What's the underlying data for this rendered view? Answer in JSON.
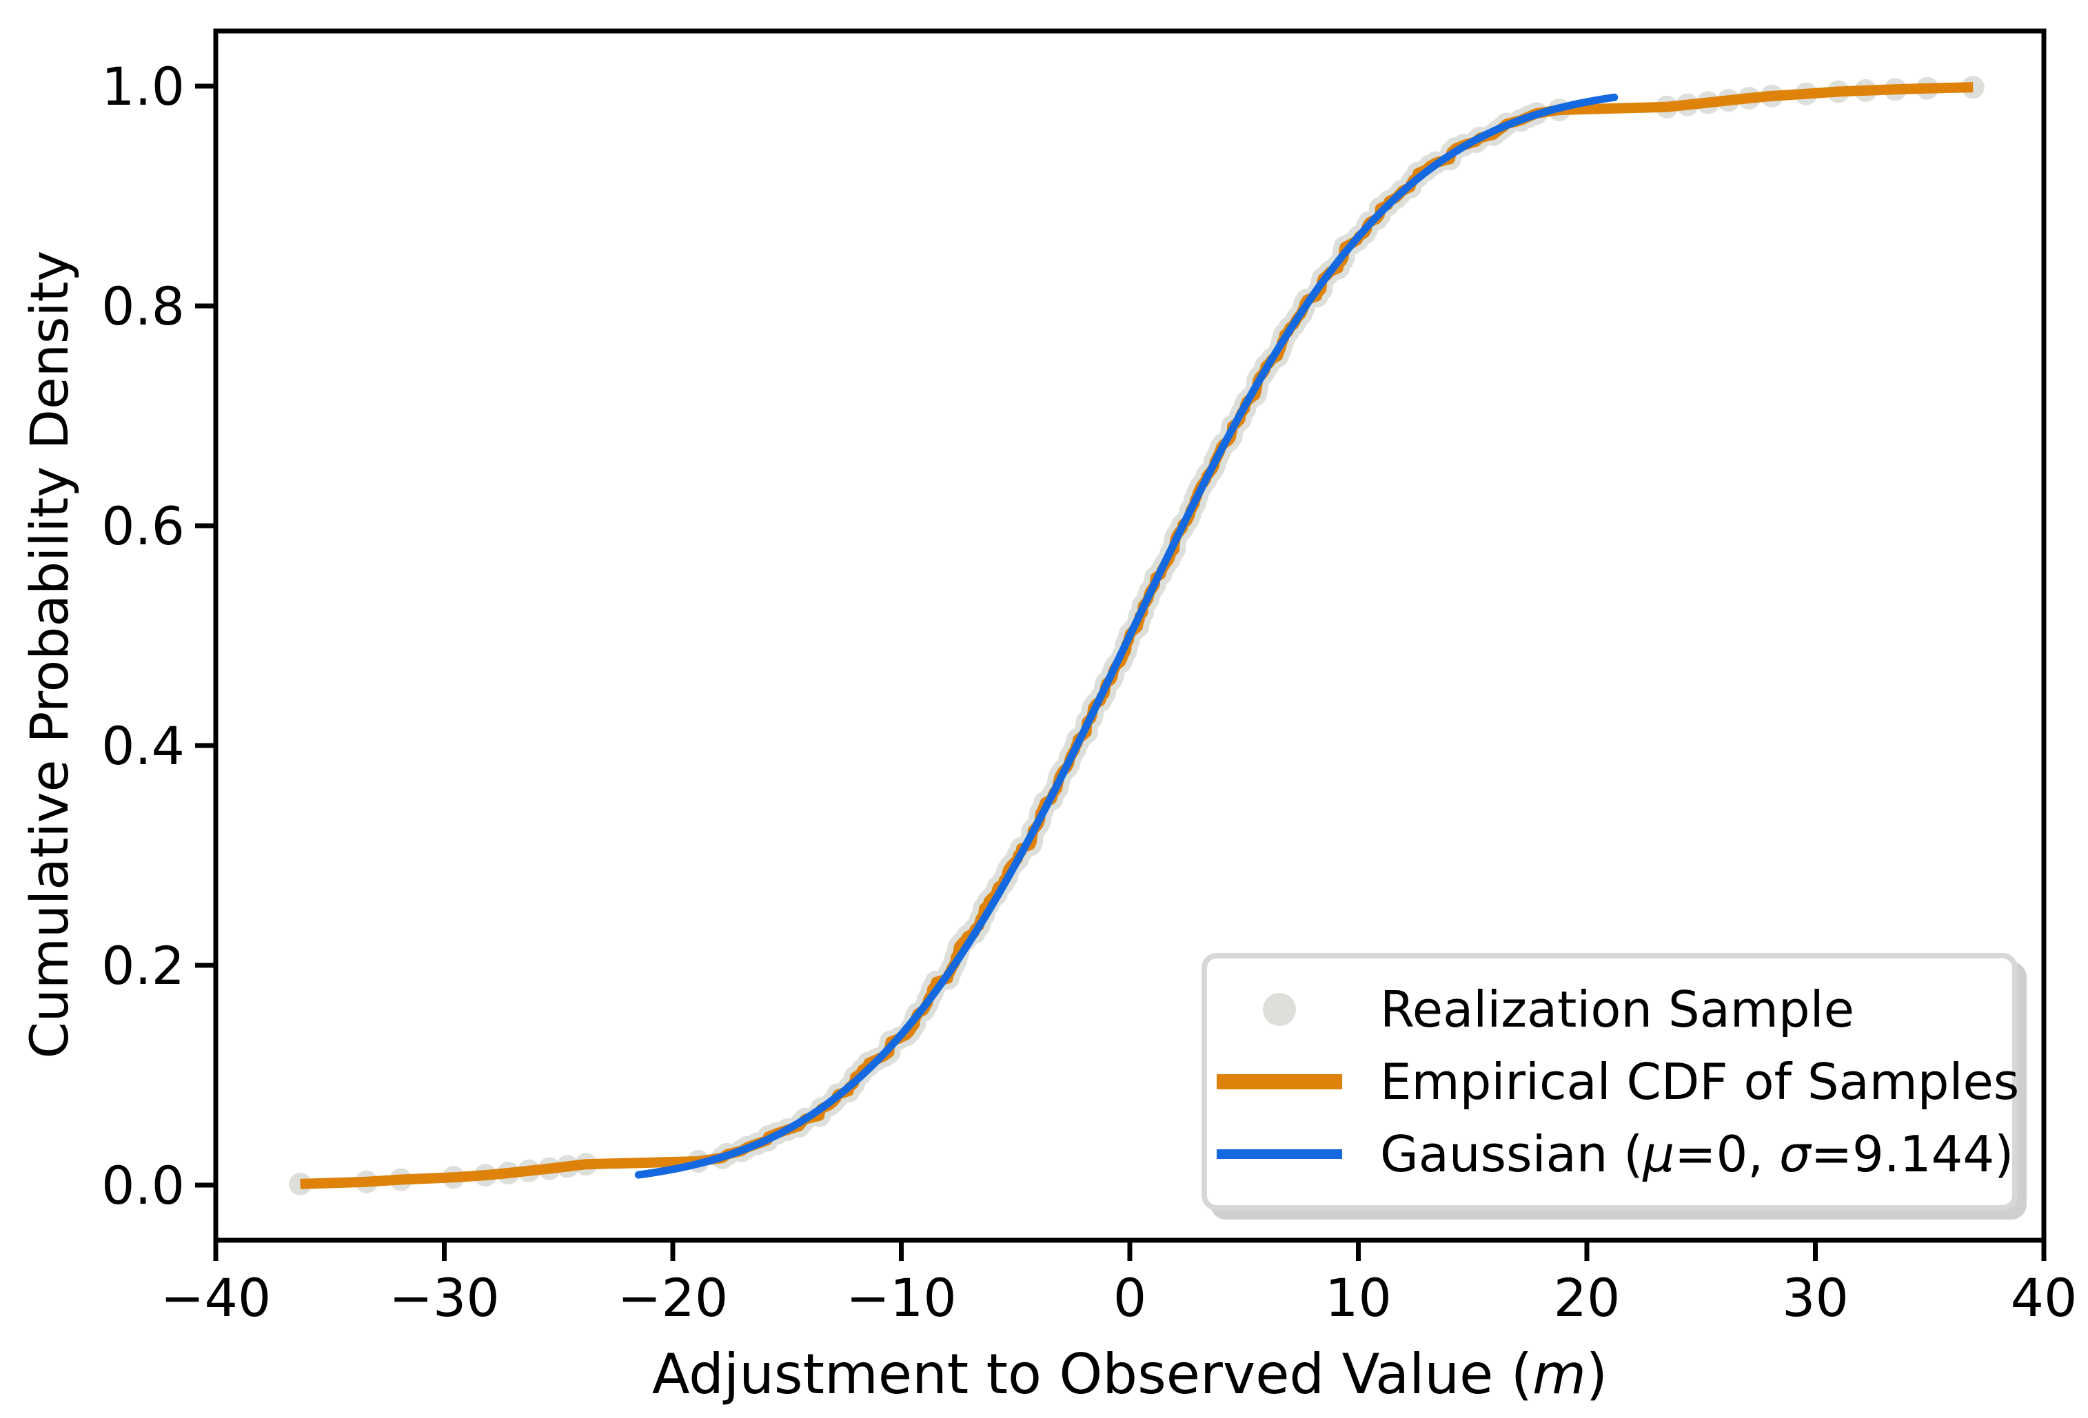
{
  "figure": {
    "background": "#ffffff"
  },
  "chart_data": {
    "type": "scatter+line",
    "title": "",
    "xlabel": {
      "prefix": "Adjustment to Observed Value (",
      "var": "m",
      "suffix": ")"
    },
    "ylabel": "Cumulative Probability Density",
    "xlim": [
      -40,
      40
    ],
    "ylim": [
      -0.05,
      1.05
    ],
    "grid": false,
    "x_ticks": [
      {
        "v": -40,
        "label": "−40"
      },
      {
        "v": -30,
        "label": "−30"
      },
      {
        "v": -20,
        "label": "−20"
      },
      {
        "v": -10,
        "label": "−10"
      },
      {
        "v": 0,
        "label": "0"
      },
      {
        "v": 10,
        "label": "10"
      },
      {
        "v": 20,
        "label": "20"
      },
      {
        "v": 30,
        "label": "30"
      },
      {
        "v": 40,
        "label": "40"
      }
    ],
    "y_ticks": [
      {
        "v": 0.0,
        "label": "0.0"
      },
      {
        "v": 0.2,
        "label": "0.2"
      },
      {
        "v": 0.4,
        "label": "0.4"
      },
      {
        "v": 0.6,
        "label": "0.6"
      },
      {
        "v": 0.8,
        "label": "0.8"
      },
      {
        "v": 1.0,
        "label": "1.0"
      }
    ],
    "legend": {
      "position": "lower right",
      "items": [
        {
          "marker": "gray-dot",
          "label": "Realization Sample"
        },
        {
          "marker": "orange-thick-line",
          "label": "Empirical CDF of Samples"
        },
        {
          "marker": "blue-line",
          "label_parts": {
            "prefix": "Gaussian (",
            "mu": "μ",
            "mid": "=0, ",
            "sigma": "σ",
            "suffix": "=9.144)"
          }
        }
      ]
    },
    "series": [
      {
        "name": "Realization Sample",
        "type": "scatter",
        "color": "#dcdfda"
      },
      {
        "name": "Empirical CDF of Samples",
        "type": "line",
        "color": "#de820a",
        "x_min": -36.3,
        "x_max": 36.9
      },
      {
        "name": "Gaussian (μ=0, σ=9.144)",
        "type": "line",
        "color": "#1569e0",
        "mu": 0,
        "sigma": 9.144,
        "x_min": -21.5,
        "x_max": 21.2
      }
    ],
    "samples": {
      "left_tail": [
        [
          -36.3,
          0.001
        ],
        [
          -33.4,
          0.003
        ],
        [
          -31.9,
          0.005
        ],
        [
          -29.6,
          0.007
        ],
        [
          -28.2,
          0.009
        ],
        [
          -27.2,
          0.011
        ],
        [
          -26.3,
          0.013
        ],
        [
          -25.4,
          0.015
        ],
        [
          -24.6,
          0.017
        ],
        [
          -23.8,
          0.019
        ]
      ],
      "right_tail": [
        [
          23.5,
          0.981
        ],
        [
          24.4,
          0.983
        ],
        [
          25.3,
          0.985
        ],
        [
          26.2,
          0.987
        ],
        [
          27.1,
          0.989
        ],
        [
          28.1,
          0.991
        ],
        [
          29.6,
          0.993
        ],
        [
          31.0,
          0.995
        ],
        [
          32.2,
          0.996
        ],
        [
          33.5,
          0.997
        ],
        [
          34.9,
          0.998
        ],
        [
          36.9,
          0.999
        ]
      ],
      "dense": {
        "n": 300,
        "p_min": 0.02,
        "p_max": 0.98,
        "jitter_x": 0.8
      }
    }
  }
}
